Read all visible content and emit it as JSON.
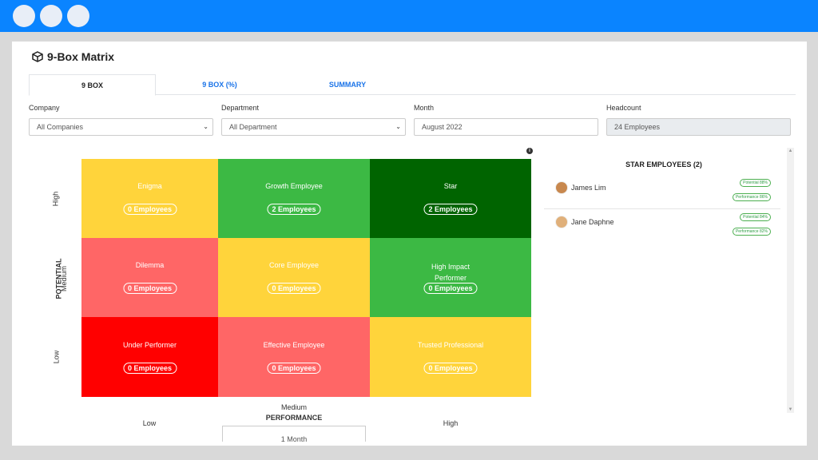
{
  "app": {
    "title": "9-Box Matrix"
  },
  "tabs": [
    {
      "label": "9 BOX",
      "active": true
    },
    {
      "label": "9 BOX (%)",
      "active": false
    },
    {
      "label": "SUMMARY",
      "active": false
    }
  ],
  "filters": {
    "company": {
      "label": "Company",
      "value": "All Companies"
    },
    "department": {
      "label": "Department",
      "value": "All Department"
    },
    "month": {
      "label": "Month",
      "value": "August 2022"
    },
    "headcount": {
      "label": "Headcount",
      "value": "24 Employees"
    }
  },
  "matrix": {
    "y_axis_title": "POTENTIAL",
    "y_labels": {
      "high": "High",
      "medium": "Medium",
      "low": "Low"
    },
    "x_axis_title": "PERFORMANCE",
    "x_labels": {
      "low": "Low",
      "medium": "Medium",
      "high": "High"
    },
    "cells": [
      {
        "name": "Enigma",
        "count": "0 Employees",
        "color": "#ffd43b"
      },
      {
        "name": "Growth Employee",
        "count": "2 Employees",
        "color": "#3cb944"
      },
      {
        "name": "Star",
        "count": "2 Employees",
        "color": "#006400"
      },
      {
        "name": "Dilemma",
        "count": "0 Employees",
        "color": "#ff6666"
      },
      {
        "name": "Core Employee",
        "count": "0 Employees",
        "color": "#ffd43b"
      },
      {
        "name": "High Impact Performer",
        "count": "0 Employees",
        "color": "#3cb944"
      },
      {
        "name": "Under Performer",
        "count": "0 Employees",
        "color": "#ff0000"
      },
      {
        "name": "Effective Employee",
        "count": "0 Employees",
        "color": "#ff6666"
      },
      {
        "name": "Trusted Professional",
        "count": "0 Employees",
        "color": "#ffd43b"
      }
    ],
    "bottom_input": "1 Month"
  },
  "side_panel": {
    "title": "STAR EMPLOYEES (2)",
    "employees": [
      {
        "name": "James Lim",
        "potential": "Potential 88%",
        "performance": "Performance 86%"
      },
      {
        "name": "Jane Daphne",
        "potential": "Potential 84%",
        "performance": "Performance 82%"
      }
    ]
  },
  "colors": {
    "accent": "#0a84ff",
    "link": "#1a73e8"
  }
}
